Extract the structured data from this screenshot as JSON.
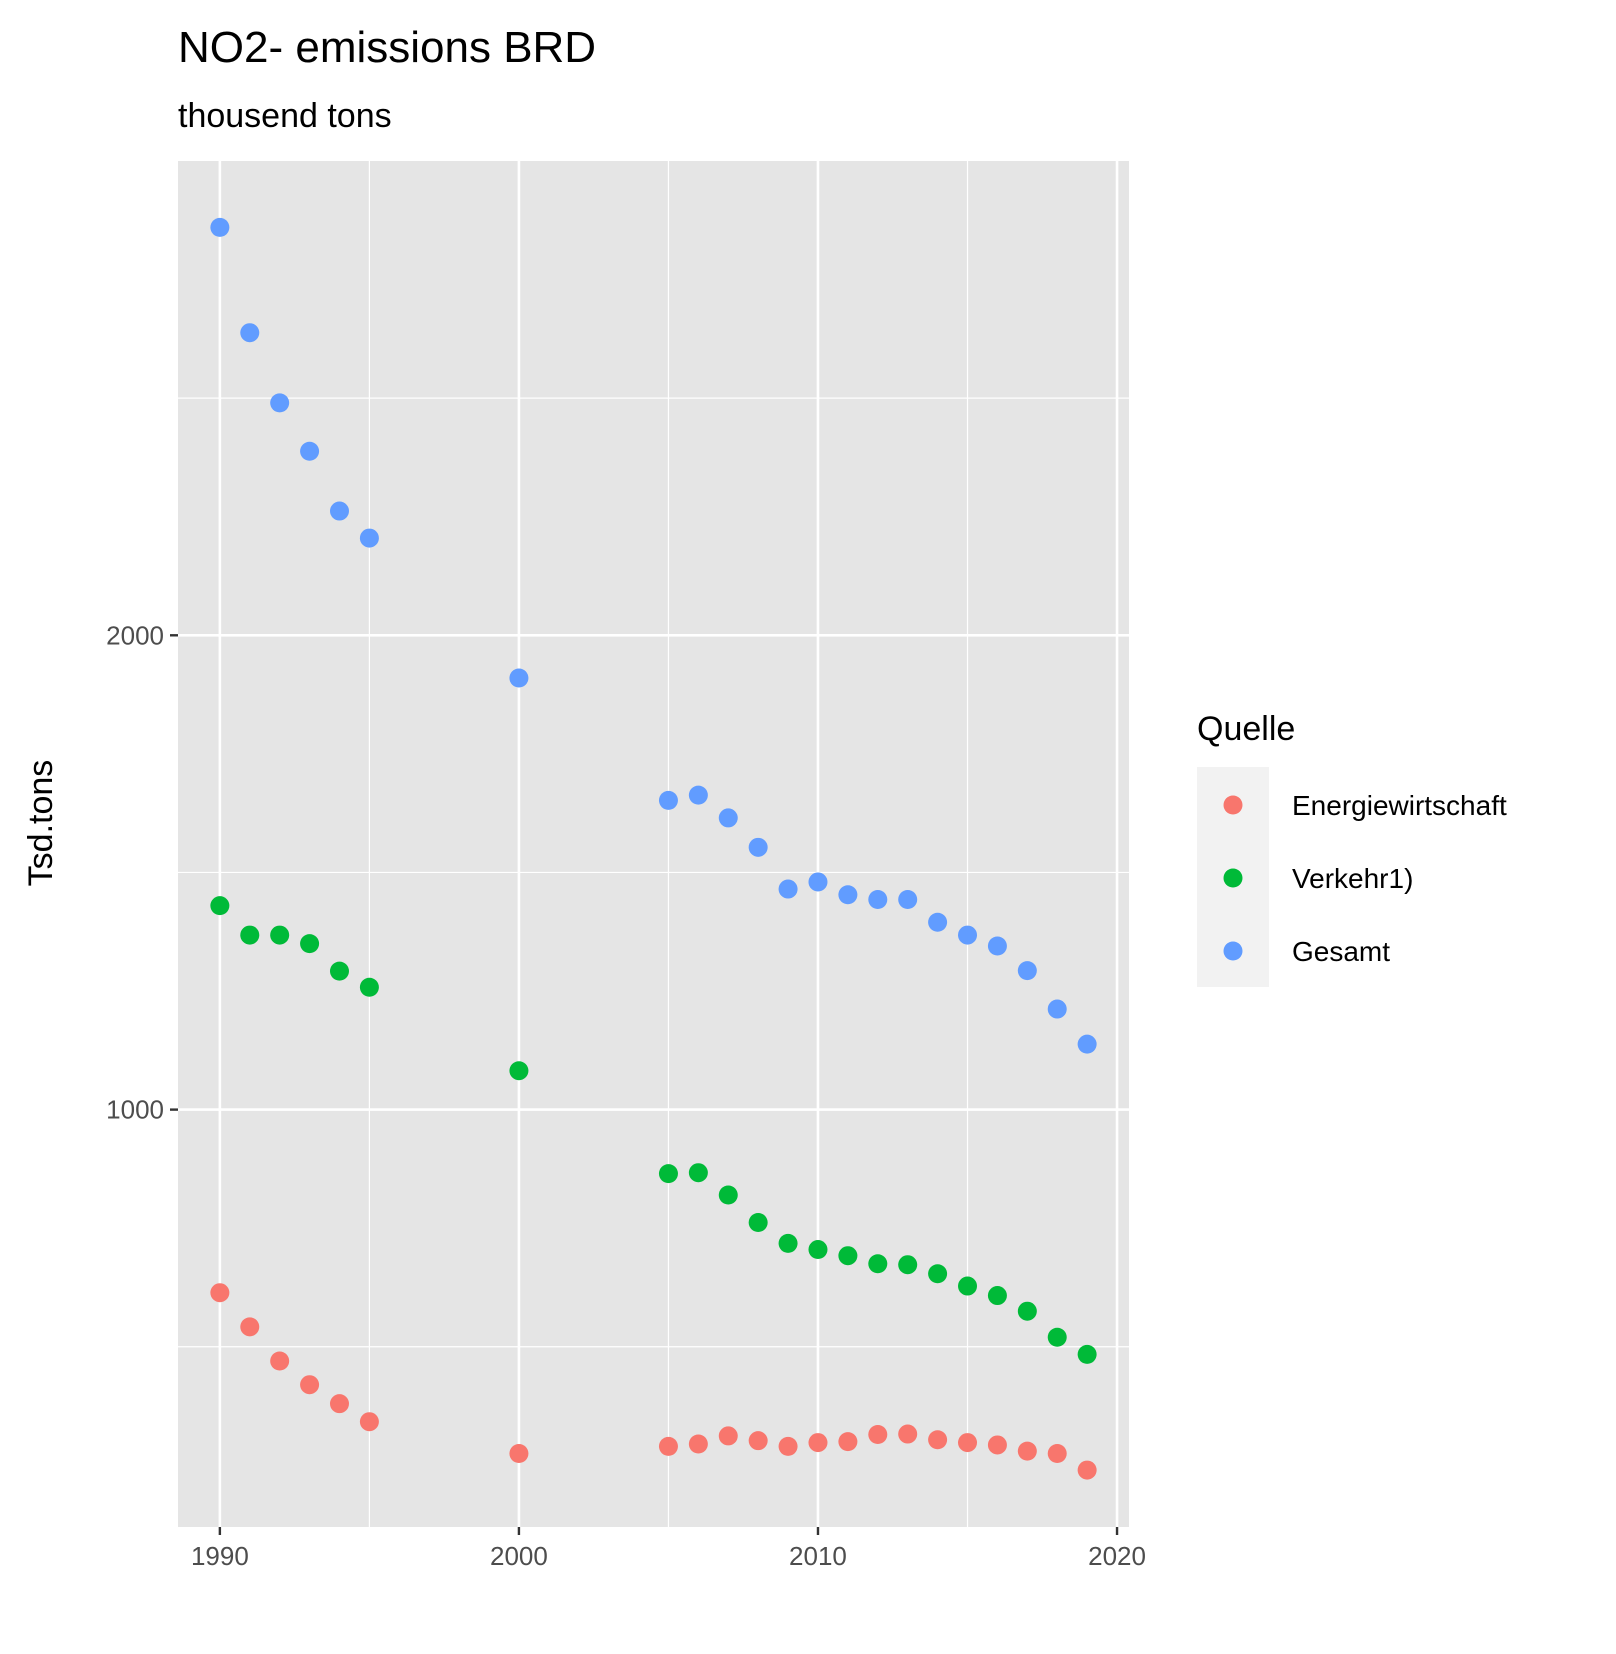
{
  "chart_data": {
    "type": "scatter",
    "title": "NO2- emissions BRD",
    "subtitle": "thousend tons",
    "xlabel": "",
    "ylabel": "Tsd.tons",
    "xlim": [
      1988.6,
      2020.4
    ],
    "ylim": [
      120,
      3000
    ],
    "x_ticks": [
      1990,
      2000,
      2010,
      2020
    ],
    "y_ticks": [
      1000,
      2000
    ],
    "grid": true,
    "legend": {
      "title": "Quelle",
      "placement": "right"
    },
    "x": [
      1990,
      1991,
      1992,
      1993,
      1994,
      1995,
      2000,
      2005,
      2006,
      2007,
      2008,
      2009,
      2010,
      2011,
      2012,
      2013,
      2014,
      2015,
      2016,
      2017,
      2018,
      2019
    ],
    "series": [
      {
        "name": "Energiewirtschaft",
        "color": "#F8766D",
        "values": [
          614,
          542,
          470,
          420,
          380,
          342,
          275,
          290,
          295,
          312,
          302,
          290,
          298,
          300,
          315,
          316,
          304,
          298,
          293,
          280,
          275,
          240
        ]
      },
      {
        "name": "Verkehr1)",
        "color": "#00BA38",
        "values": [
          1430,
          1368,
          1368,
          1350,
          1292,
          1258,
          1082,
          865,
          867,
          820,
          762,
          718,
          705,
          692,
          675,
          673,
          654,
          628,
          608,
          575,
          520,
          484
        ]
      },
      {
        "name": "Gesamt",
        "color": "#619CFF",
        "values": [
          2860,
          2638,
          2490,
          2388,
          2262,
          2205,
          1910,
          1652,
          1663,
          1615,
          1553,
          1465,
          1480,
          1453,
          1443,
          1443,
          1395,
          1368,
          1345,
          1293,
          1212,
          1138
        ]
      }
    ]
  }
}
